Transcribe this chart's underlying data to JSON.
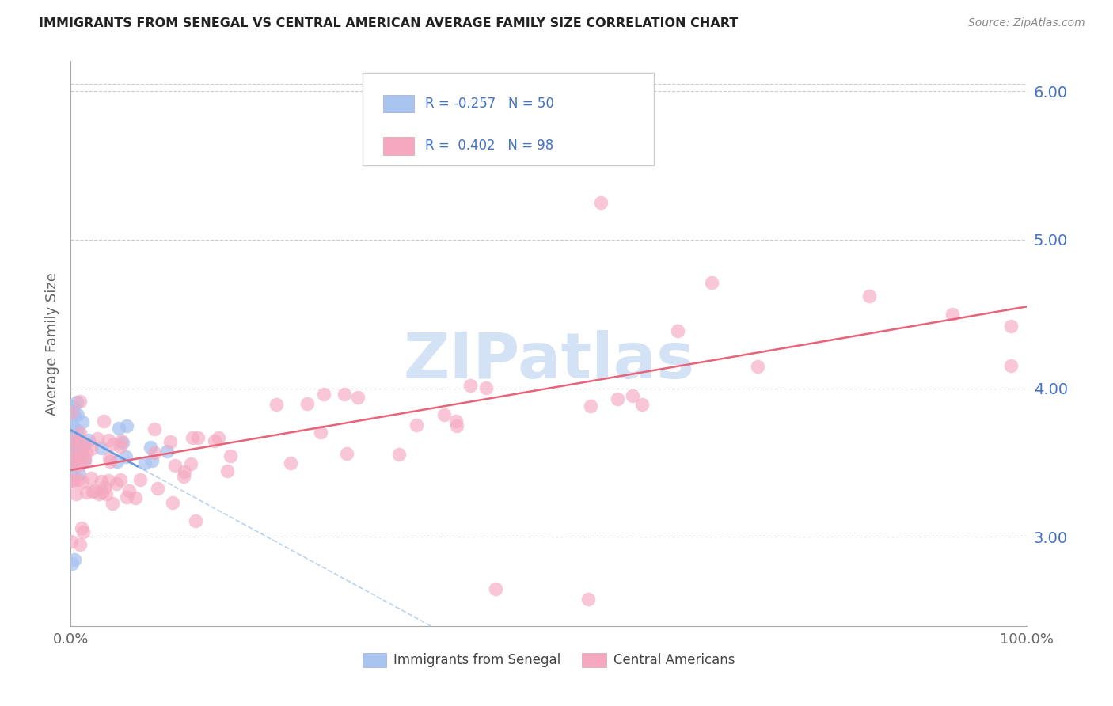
{
  "title": "IMMIGRANTS FROM SENEGAL VS CENTRAL AMERICAN AVERAGE FAMILY SIZE CORRELATION CHART",
  "source": "Source: ZipAtlas.com",
  "ylabel": "Average Family Size",
  "xlim": [
    0.0,
    1.0
  ],
  "ylim": [
    2.4,
    6.2
  ],
  "yticks": [
    3.0,
    4.0,
    5.0,
    6.0
  ],
  "background_color": "#ffffff",
  "grid_color": "#cccccc",
  "senegal_color": "#aac4f0",
  "central_color": "#f5a8c0",
  "senegal_R": -0.257,
  "senegal_N": 50,
  "central_R": 0.402,
  "central_N": 98,
  "senegal_line_color": "#6699dd",
  "central_line_color": "#e8637a",
  "watermark_color": "#d0dff5",
  "tick_color": "#4472c4",
  "axis_color": "#aaaaaa",
  "label_color": "#666666"
}
